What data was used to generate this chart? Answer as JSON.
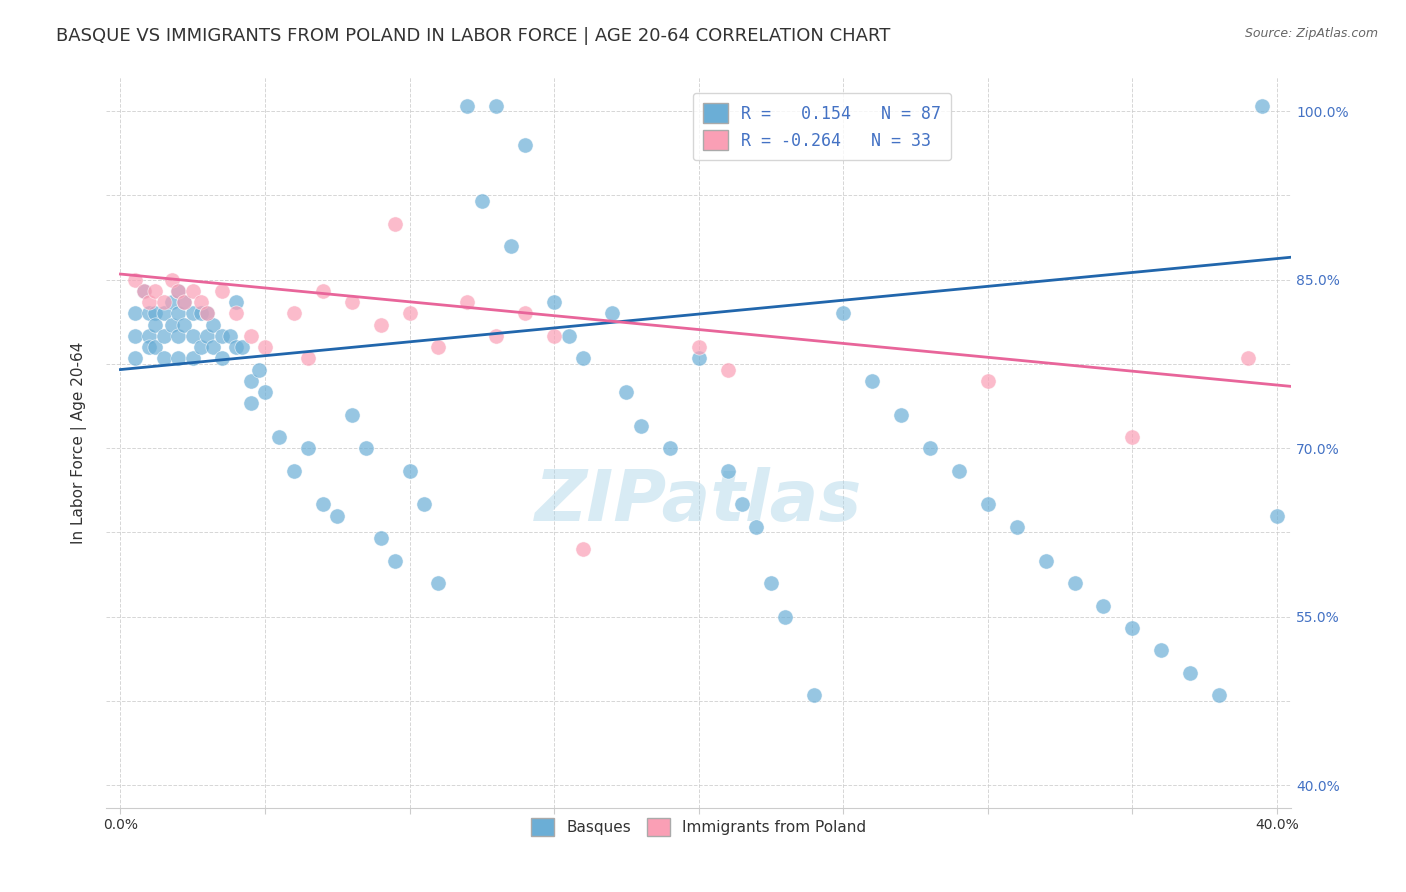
{
  "title": "BASQUE VS IMMIGRANTS FROM POLAND IN LABOR FORCE | AGE 20-64 CORRELATION CHART",
  "source": "Source: ZipAtlas.com",
  "xlabel": "",
  "ylabel": "In Labor Force | Age 20-64",
  "xlim": [
    -0.005,
    0.405
  ],
  "ylim": [
    0.38,
    1.03
  ],
  "xticks": [
    0.0,
    0.05,
    0.1,
    0.15,
    0.2,
    0.25,
    0.3,
    0.35,
    0.4
  ],
  "xtick_labels": [
    "0.0%",
    "",
    "",
    "",
    "",
    "",
    "",
    "",
    "40.0%"
  ],
  "ytick_labels": [
    "40.0%",
    "",
    "55.0%",
    "",
    "70.0%",
    "",
    "85.0%",
    "",
    "100.0%"
  ],
  "yticks": [
    0.4,
    0.475,
    0.55,
    0.625,
    0.7,
    0.775,
    0.85,
    0.925,
    1.0
  ],
  "right_ytick_labels": [
    "100.0%",
    "85.0%",
    "70.0%",
    "55.0%",
    "40.0%"
  ],
  "right_yticks": [
    1.0,
    0.85,
    0.7,
    0.55,
    0.4
  ],
  "blue_scatter_x": [
    0.005,
    0.005,
    0.005,
    0.008,
    0.01,
    0.01,
    0.01,
    0.012,
    0.012,
    0.012,
    0.015,
    0.015,
    0.015,
    0.018,
    0.018,
    0.02,
    0.02,
    0.02,
    0.02,
    0.022,
    0.022,
    0.025,
    0.025,
    0.025,
    0.028,
    0.028,
    0.03,
    0.03,
    0.032,
    0.032,
    0.035,
    0.035,
    0.038,
    0.04,
    0.04,
    0.042,
    0.045,
    0.045,
    0.048,
    0.05,
    0.055,
    0.06,
    0.065,
    0.07,
    0.075,
    0.08,
    0.085,
    0.09,
    0.095,
    0.1,
    0.105,
    0.11,
    0.12,
    0.125,
    0.13,
    0.14,
    0.15,
    0.155,
    0.16,
    0.17,
    0.175,
    0.18,
    0.19,
    0.2,
    0.21,
    0.215,
    0.22,
    0.225,
    0.23,
    0.24,
    0.25,
    0.26,
    0.27,
    0.28,
    0.29,
    0.3,
    0.31,
    0.32,
    0.33,
    0.34,
    0.35,
    0.36,
    0.37,
    0.38,
    0.395,
    0.4,
    0.135
  ],
  "blue_scatter_y": [
    0.82,
    0.8,
    0.78,
    0.84,
    0.82,
    0.8,
    0.79,
    0.82,
    0.81,
    0.79,
    0.82,
    0.8,
    0.78,
    0.83,
    0.81,
    0.84,
    0.82,
    0.8,
    0.78,
    0.83,
    0.81,
    0.82,
    0.8,
    0.78,
    0.82,
    0.79,
    0.82,
    0.8,
    0.81,
    0.79,
    0.8,
    0.78,
    0.8,
    0.83,
    0.79,
    0.79,
    0.76,
    0.74,
    0.77,
    0.75,
    0.71,
    0.68,
    0.7,
    0.65,
    0.64,
    0.73,
    0.7,
    0.62,
    0.6,
    0.68,
    0.65,
    0.58,
    1.005,
    0.92,
    1.005,
    0.97,
    0.83,
    0.8,
    0.78,
    0.82,
    0.75,
    0.72,
    0.7,
    0.78,
    0.68,
    0.65,
    0.63,
    0.58,
    0.55,
    0.48,
    0.82,
    0.76,
    0.73,
    0.7,
    0.68,
    0.65,
    0.63,
    0.6,
    0.58,
    0.56,
    0.54,
    0.52,
    0.5,
    0.48,
    1.005,
    0.64,
    0.88
  ],
  "pink_scatter_x": [
    0.005,
    0.008,
    0.01,
    0.012,
    0.015,
    0.018,
    0.02,
    0.022,
    0.025,
    0.028,
    0.03,
    0.035,
    0.04,
    0.045,
    0.05,
    0.06,
    0.065,
    0.07,
    0.08,
    0.09,
    0.095,
    0.1,
    0.11,
    0.12,
    0.13,
    0.14,
    0.15,
    0.16,
    0.2,
    0.21,
    0.3,
    0.35,
    0.39
  ],
  "pink_scatter_y": [
    0.85,
    0.84,
    0.83,
    0.84,
    0.83,
    0.85,
    0.84,
    0.83,
    0.84,
    0.83,
    0.82,
    0.84,
    0.82,
    0.8,
    0.79,
    0.82,
    0.78,
    0.84,
    0.83,
    0.81,
    0.9,
    0.82,
    0.79,
    0.83,
    0.8,
    0.82,
    0.8,
    0.61,
    0.79,
    0.77,
    0.76,
    0.71,
    0.78
  ],
  "blue_line_x": [
    0.0,
    0.405
  ],
  "blue_line_y": [
    0.77,
    0.87
  ],
  "pink_line_x": [
    0.0,
    0.405
  ],
  "pink_line_y": [
    0.855,
    0.755
  ],
  "blue_color": "#6baed6",
  "pink_color": "#fa9fb5",
  "blue_line_color": "#2166ac",
  "pink_line_color": "#e8659a",
  "legend_blue_label": "R =   0.154   N = 87",
  "legend_pink_label": "R = -0.264   N = 33",
  "watermark": "ZIPatlas",
  "background_color": "#ffffff",
  "grid_color": "#cccccc",
  "title_fontsize": 13,
  "axis_label_fontsize": 11,
  "tick_fontsize": 10
}
